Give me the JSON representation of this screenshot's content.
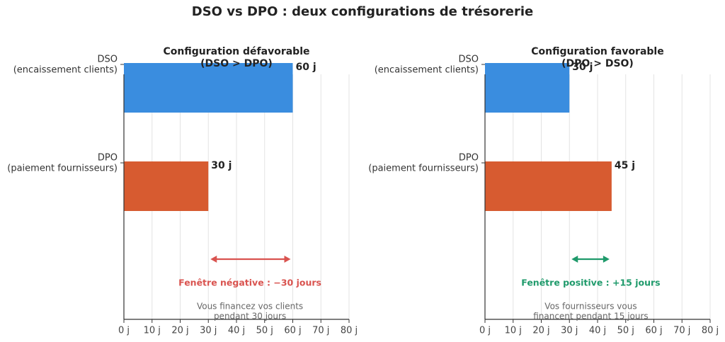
{
  "title": "DSO vs DPO : deux configurations de trésorerie",
  "chart_data": [
    {
      "type": "bar",
      "orientation": "horizontal",
      "title_lines": [
        "Configuration défavorable",
        "(DSO > DPO)"
      ],
      "categories": [
        {
          "lines": [
            "DSO",
            "(encaissement clients)"
          ]
        },
        {
          "lines": [
            "DPO",
            "(paiement fournisseurs)"
          ]
        }
      ],
      "values": [
        60,
        30
      ],
      "value_labels": [
        "60 j",
        "30 j"
      ],
      "bar_colors": [
        "#3a8ddf",
        "#d75b30"
      ],
      "xlim": [
        0,
        80
      ],
      "x_ticks": [
        0,
        10,
        20,
        30,
        40,
        50,
        60,
        70,
        80
      ],
      "x_tick_labels": [
        "0 j",
        "10 j",
        "20 j",
        "30 j",
        "40 j",
        "50 j",
        "60 j",
        "70 j",
        "80 j"
      ],
      "grid": "vertical",
      "annotation": {
        "arrow_from": 30,
        "arrow_to": 60,
        "label": "Fenêtre négative : −30 jours",
        "color": "#d9534f",
        "note_lines": [
          "Vous financez vos clients",
          "pendant 30 jours"
        ]
      }
    },
    {
      "type": "bar",
      "orientation": "horizontal",
      "title_lines": [
        "Configuration favorable",
        "(DPO > DSO)"
      ],
      "categories": [
        {
          "lines": [
            "DSO",
            "(encaissement clients)"
          ]
        },
        {
          "lines": [
            "DPO",
            "(paiement fournisseurs)"
          ]
        }
      ],
      "values": [
        30,
        45
      ],
      "value_labels": [
        "30 j",
        "45 j"
      ],
      "bar_colors": [
        "#3a8ddf",
        "#d75b30"
      ],
      "xlim": [
        0,
        80
      ],
      "x_ticks": [
        0,
        10,
        20,
        30,
        40,
        50,
        60,
        70,
        80
      ],
      "x_tick_labels": [
        "0 j",
        "10 j",
        "20 j",
        "30 j",
        "40 j",
        "50 j",
        "60 j",
        "70 j",
        "80 j"
      ],
      "grid": "vertical",
      "annotation": {
        "arrow_from": 30,
        "arrow_to": 45,
        "label": "Fenêtre positive : +15 jours",
        "color": "#1f9a6b",
        "note_lines": [
          "Vos fournisseurs vous",
          "financent pendant 15 jours"
        ]
      }
    }
  ]
}
